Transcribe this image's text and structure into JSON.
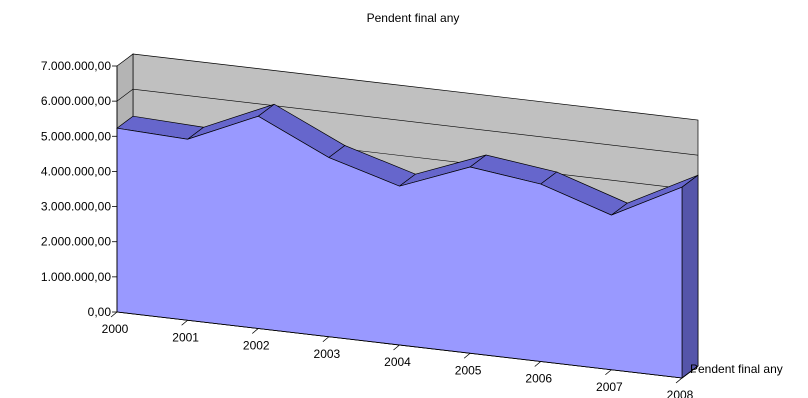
{
  "chart_data": {
    "type": "area",
    "title": "Pendent final any",
    "categories": [
      "2000",
      "2001",
      "2002",
      "2003",
      "2004",
      "2005",
      "2006",
      "2007",
      "2008"
    ],
    "series": [
      {
        "name": "Pendent final any",
        "values": [
          5230000,
          5150000,
          6040000,
          5100000,
          4520000,
          5300000,
          5050000,
          4400000,
          5430000
        ]
      }
    ],
    "ylim": [
      0,
      7000000
    ],
    "yticks": [
      "0,00",
      "1.000.000,00",
      "2.000.000,00",
      "3.000.000,00",
      "4.000.000,00",
      "5.000.000,00",
      "6.000.000,00",
      "7.000.000,00"
    ],
    "xlabel": "",
    "ylabel": "",
    "legend_position": "bottom-right",
    "grid": true,
    "colors": {
      "area": "#9999ff",
      "area_edge": "#6666cc",
      "area_side": "#5555aa",
      "wall": "#c0c0c0"
    }
  }
}
